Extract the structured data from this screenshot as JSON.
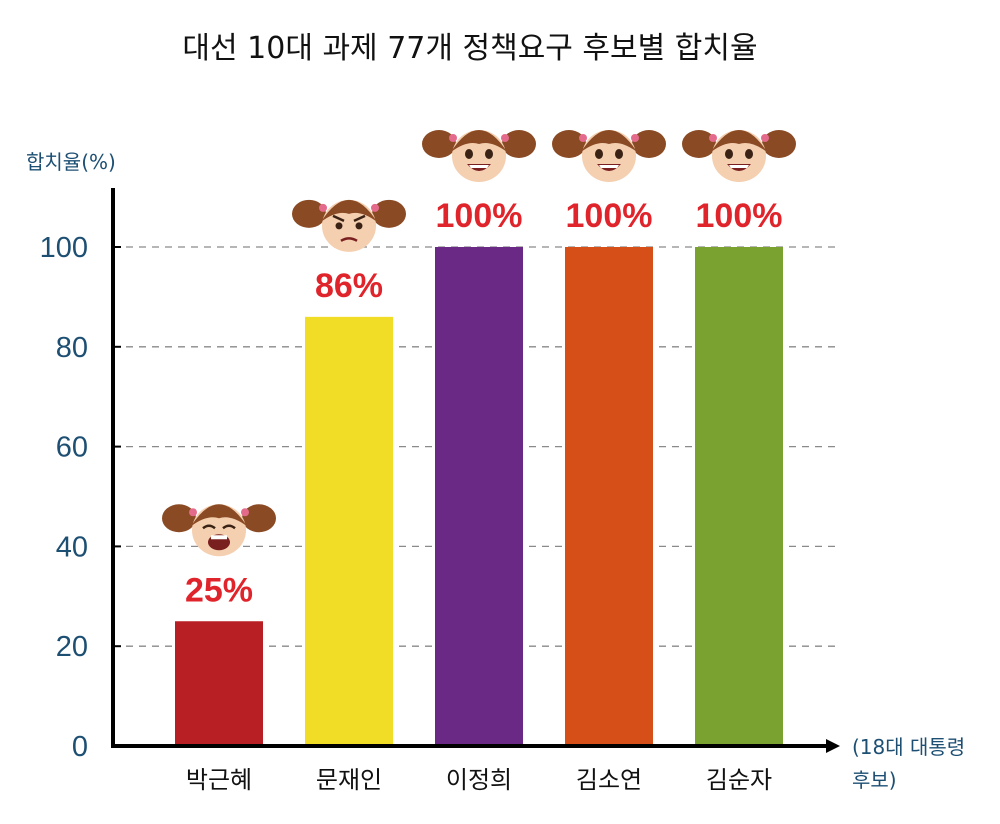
{
  "chart_data": {
    "type": "bar",
    "title": "대선 10대 과제 77개 정책요구 후보별 합치율",
    "ylabel": "합치율(%)",
    "xlabel": "(18대 대통령 후보)",
    "categories": [
      "박근혜",
      "문재인",
      "이정희",
      "김소연",
      "김순자"
    ],
    "values": [
      25,
      86,
      100,
      100,
      100
    ],
    "value_labels": [
      "25%",
      "86%",
      "100%",
      "100%",
      "100%"
    ],
    "colors": [
      "#b81f24",
      "#f1dc26",
      "#6a2985",
      "#d74f18",
      "#7aa230"
    ],
    "ylim": [
      0,
      110
    ],
    "yticks": [
      0,
      20,
      40,
      60,
      80,
      100
    ],
    "grid": "dashed horizontal",
    "face_icons": [
      "crying-face-icon",
      "angry-face-icon",
      "happy-face-icon",
      "happy-face-icon",
      "happy-face-icon"
    ]
  }
}
